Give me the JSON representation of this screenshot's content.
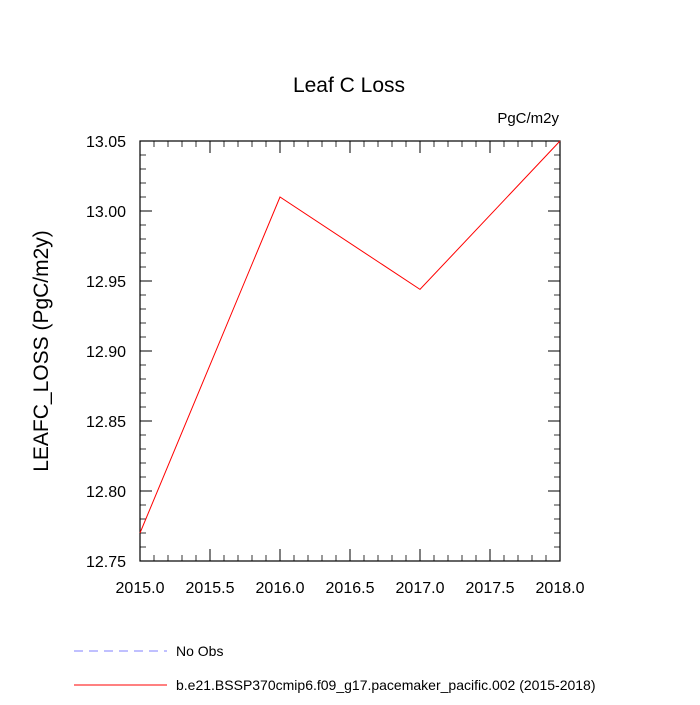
{
  "chart_data": {
    "type": "line",
    "title": "Leaf C Loss",
    "units_label": "PgC/m2y",
    "xlabel": "",
    "ylabel": "LEAFC_LOSS  (PgC/m2y)",
    "xlim": [
      2015.0,
      2018.0
    ],
    "ylim": [
      12.75,
      13.05
    ],
    "x_ticks": [
      2015.0,
      2015.5,
      2016.0,
      2016.5,
      2017.0,
      2017.5,
      2018.0
    ],
    "x_tick_labels": [
      "2015.0",
      "2015.5",
      "2016.0",
      "2016.5",
      "2017.0",
      "2017.5",
      "2018.0"
    ],
    "y_ticks": [
      12.75,
      12.8,
      12.85,
      12.9,
      12.95,
      13.0,
      13.05
    ],
    "y_tick_labels": [
      "12.75",
      "12.80",
      "12.85",
      "12.90",
      "12.95",
      "13.00",
      "13.05"
    ],
    "grid": false,
    "legend_position": "bottom-left",
    "series": [
      {
        "name": "b.e21.BSSP370cmip6.f09_g17.pacemaker_pacific.002 (2015-2018)",
        "color": "#ff0000",
        "line_style": "solid",
        "x": [
          2015.0,
          2016.0,
          2017.0,
          2018.0
        ],
        "y": [
          12.77,
          13.01,
          12.944,
          13.05
        ]
      }
    ],
    "legend": [
      {
        "label": "No Obs",
        "color": "#8080ff",
        "line_style": "dashed"
      },
      {
        "label": "b.e21.BSSP370cmip6.f09_g17.pacemaker_pacific.002 (2015-2018)",
        "color": "#ff0000",
        "line_style": "solid"
      }
    ]
  }
}
